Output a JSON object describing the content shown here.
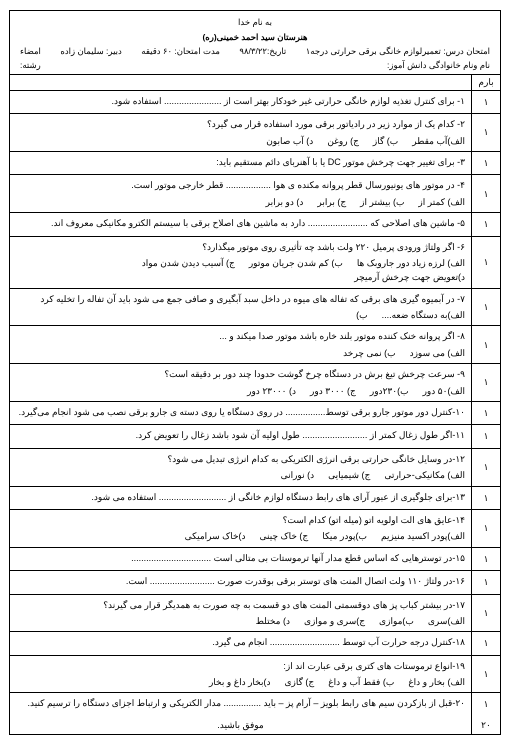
{
  "header": {
    "bismillah": "به نام خدا",
    "school": "هنرستان سید احمد خمینی(ره)",
    "row1_right": "امتحان درس: تعمیرلوازم خانگی برقی حرارتی درجه۱",
    "row1_mid1": "تاریخ:۹۸/۳/۲۲",
    "row1_mid2": "مدت امتحان: ۶۰ دقیقه",
    "row1_mid3": "دبیر: سلیمان زاده",
    "row1_left": "امضاء",
    "row2_right": "نام ونام خانوادگی دانش آموز:",
    "row2_left": "رشته:"
  },
  "colhead_score": "بارم",
  "questions": [
    {
      "score": "۱",
      "text": "۱- برای کنترل تغذیه لوازم خانگی حرارتی غیر خودکار بهتر است از ....................... استفاده شود."
    },
    {
      "score": "۱",
      "text": "۲- کدام یک از موارد زیر در رادیاتور برقی مورد استفاده قرار می گیرد؟",
      "opts": [
        "الف)آب مقطر",
        "ب) گاز",
        "ج) روغن",
        "د) آب صابون"
      ]
    },
    {
      "score": "۱",
      "text": "۳- برای تغییر جهت چرخش موتور DC  یا با آهنربای دائم مستقیم باید:"
    },
    {
      "score": "۱",
      "text": "۴- در موتور های یونیورسال قطر پروانه مکنده ی هوا .................. قطر خارجی موتور است.",
      "opts": [
        "الف) کمتر از",
        "ب) بیشتر از",
        "ج) برابر",
        "د) دو برابر"
      ]
    },
    {
      "score": "۱",
      "text": "۵- ماشین های اصلاحی که ........................ دارد به ماشین های اصلاح برقی با سیستم الکترو مکانیکی معروف اند."
    },
    {
      "score": "۱",
      "text": "۶- اگر ولتاژ ورودی پرمیل ۲۲۰ ولت باشد چه تأثیری روی موتور میگذارد؟",
      "opts": [
        "الف) لرزه زیاد دور جاروبک ها",
        "ب) کم شدن جریان موتور",
        "ج) آسیب دیدن شدن مواد",
        "د)تعویض جهت چرخش آرمیچر"
      ]
    },
    {
      "score": "۱",
      "text": "۷- در آبمیوه گیری های برقی که تفاله های میوه در داخل سبد آبگیری و صافی جمع می شود باید آن تفاله را تخلیه کرد",
      "opts": [
        "الف)به دستگاه ضعه....",
        "ب)"
      ]
    },
    {
      "score": "۱",
      "text": "۸- اگر پروانه خنک کننده موتور بلند خاره باشد موتور صدا میکند و ...",
      "opts": [
        "الف) می سوزد",
        "ب) نمی چرخد"
      ]
    },
    {
      "score": "۱",
      "text": "۹- سرعت چرخش تیغ برش در دستگاه چرخ گوشت حدودا چند دور بر دقیقه است؟",
      "opts": [
        "الف)۵۰ دور",
        "ب)۲۳۰دور",
        "ج) ۳۰۰۰ دور",
        "د) ۲۳۰۰۰ دور"
      ]
    },
    {
      "score": "۱",
      "text": "۱۰-کنترل دور موتور جارو برقی توسط................ در روی دستگاه یا روی دسته ی جارو برقی نصب می شود انجام می‌گیرد."
    },
    {
      "score": "۱",
      "text": "۱۱-اگر طول زغال کمتر از .......................... طول اولیه آن شود باشد زغال را تعویض کرد."
    },
    {
      "score": "۱",
      "text": "۱۲-در وسایل خانگی حرارتی برقی انرژی الکتریکی به کدام انرژی تبدیل می شود؟",
      "opts": [
        "الف) مکانیکی-حرارتی",
        "ج) شیمیایی",
        "د) نورانی"
      ]
    },
    {
      "score": "۱",
      "text": "۱۳-برای جلوگیری از عبور آرای های رابط دستگاه لوازم خانگی از ........................... استفاده می شود."
    },
    {
      "score": "۱",
      "text": "۱۴-عایق های الت اولویه اتو (میله اتو) کدام است؟",
      "opts": [
        "الف)پودر اکسید منیزیم",
        "ب)پودر میکا",
        "ج) خاک چینی",
        "د)خاک سرامیکی"
      ]
    },
    {
      "score": "۱",
      "text": "۱۵-در توسترهایی که اساس قطع مدار آنها ترموستات بی متالی است ................................"
    },
    {
      "score": "۱",
      "text": "۱۶-در ولتاژ ۱۱۰ ولت اتصال المنت های توستر برقی بوقدرت صورت .......................... است."
    },
    {
      "score": "۱",
      "text": "۱۷-در بیشتر کباب پز های دوقسمتی المنت های دو قسمت به چه صورت به همدیگر قرار می گیرند؟",
      "opts": [
        "الف)سری",
        "ب)موازی",
        "ج)سری و موازی",
        "د) مختلط"
      ]
    },
    {
      "score": "۱",
      "text": "۱۸-کنترل درجه حرارت آب توسط ............................ انجام می گیرد."
    },
    {
      "score": "۱",
      "text": "۱۹-انواع ترموستات های کتری برقی عبارت اند از:",
      "opts": [
        "الف) بخار و داغ",
        "ب) فقط آب و داغ",
        "ج) گازی",
        "د)بخار داغ و بخار"
      ]
    },
    {
      "score": "۱",
      "text": "۲۰-قبل از بازکردن سیم های رابط بلویز – آرام پز – باید ............... مدار الکتریکی و ارتباط اجزای دستگاه را ترسیم کنید."
    }
  ],
  "footer": {
    "score": "۲۰",
    "text": "موفق باشید."
  }
}
